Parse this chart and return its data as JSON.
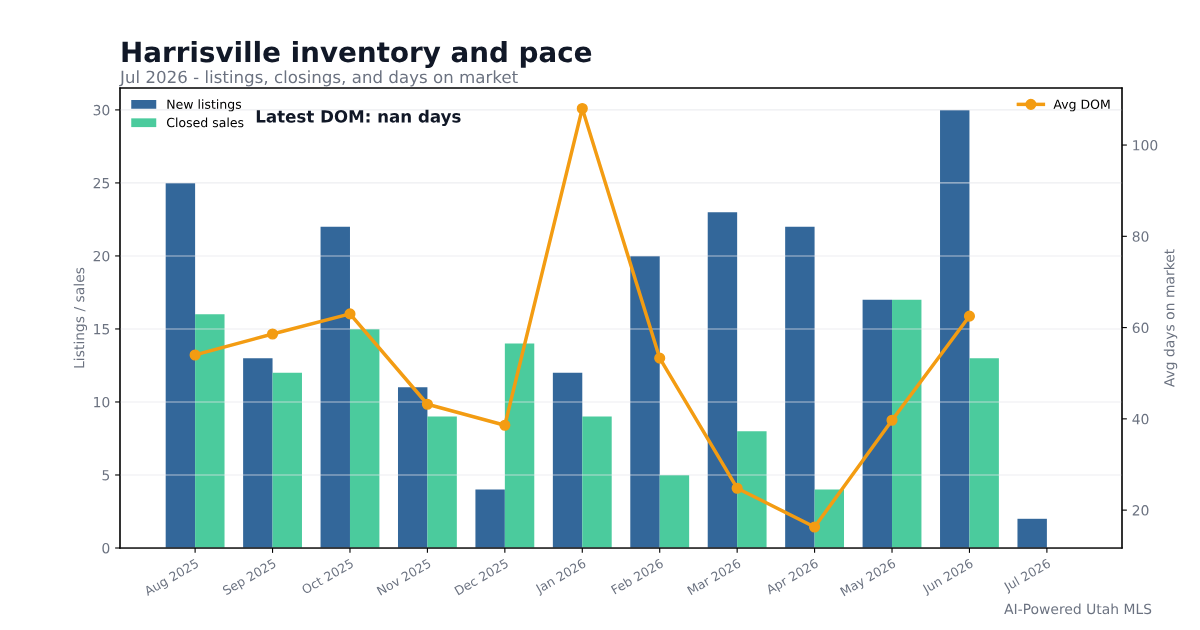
{
  "chart_data": {
    "type": "bar",
    "title": "Harrisville inventory and pace",
    "subtitle": "Jul 2026 - listings, closings, and days on market",
    "ylabel": "Listings / sales",
    "y2label": "Avg days on market",
    "categories": [
      "Aug 2025",
      "Sep 2025",
      "Oct 2025",
      "Nov 2025",
      "Dec 2025",
      "Jan 2026",
      "Feb 2026",
      "Mar 2026",
      "Apr 2026",
      "May 2026",
      "Jun 2026",
      "Jul 2026"
    ],
    "series": [
      {
        "name": "New listings",
        "color": "#33679a",
        "values": [
          25,
          13,
          22,
          11,
          4,
          12,
          20,
          23,
          22,
          17,
          30,
          2
        ]
      },
      {
        "name": "Closed sales",
        "color": "#4bcb9d",
        "values": [
          16,
          12,
          15,
          9,
          14,
          9,
          5,
          8,
          4,
          17,
          13,
          null
        ]
      },
      {
        "name": "Avg DOM",
        "type": "line",
        "axis": "y2",
        "color": "#f39c12",
        "values": [
          54,
          58.6,
          63,
          43.2,
          38.6,
          108,
          53.3,
          24.8,
          16.3,
          39.7,
          62.5,
          null
        ]
      }
    ],
    "ylim": [
      0,
      31.5
    ],
    "yticks": [
      0,
      5,
      10,
      15,
      20,
      25,
      30
    ],
    "y2lim": [
      11.7,
      112.5
    ],
    "y2ticks": [
      20,
      40,
      60,
      80,
      100
    ],
    "grid": "y",
    "legend": "top",
    "marker": "circle",
    "line_style": "solid",
    "annotations": [
      "Latest DOM: nan days",
      "AI-Powered Utah MLS"
    ]
  }
}
